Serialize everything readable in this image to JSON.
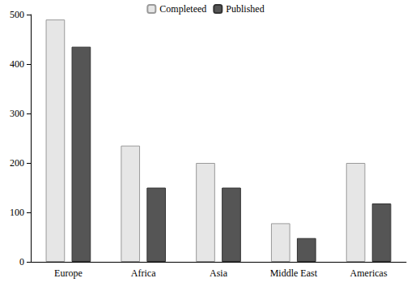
{
  "chart_data": {
    "type": "bar",
    "categories": [
      "Europe",
      "Africa",
      "Asia",
      "Middle East",
      "Americas"
    ],
    "series": [
      {
        "name": "Completeed",
        "color": "#e6e6e6",
        "values": [
          490,
          235,
          200,
          78,
          200
        ]
      },
      {
        "name": "Published",
        "color": "#555555",
        "values": [
          435,
          150,
          150,
          48,
          118
        ]
      }
    ],
    "ylim": [
      0,
      500
    ],
    "yticks": [
      0,
      100,
      200,
      300,
      400,
      500
    ],
    "grid": false,
    "legend": "top"
  }
}
